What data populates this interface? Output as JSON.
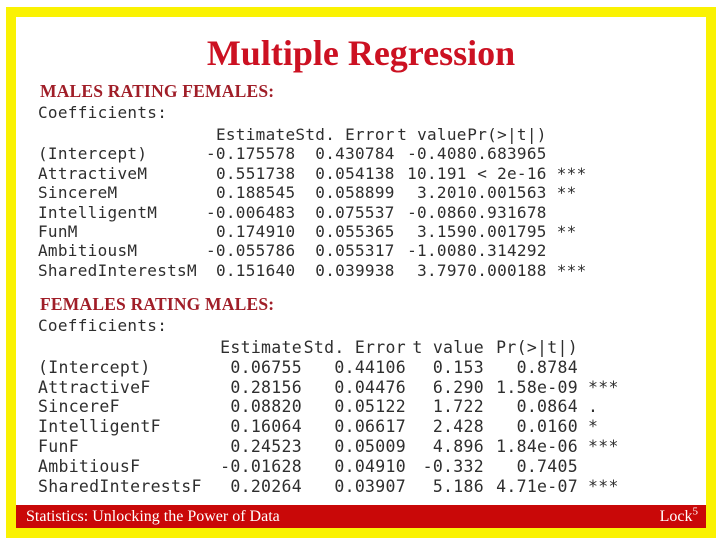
{
  "slide": {
    "title": "Multiple Regression"
  },
  "colors": {
    "title_red": "#cc1122",
    "heading_red": "#a01e28",
    "footer_red": "#c90808",
    "border_yellow": "#faf202",
    "footer_text": "#ffffff",
    "body_text": "#2e2e2e"
  },
  "sections": [
    {
      "heading": "MALES RATING FEMALES:",
      "coefficients_label": "Coefficients:",
      "columns": [
        "Estimate",
        "Std. Error",
        "t value",
        "Pr(>|t|)"
      ],
      "rows": [
        {
          "label": "(Intercept)",
          "estimate": "-0.175578",
          "std_error": "0.430784",
          "t_value": "-0.408",
          "p_value": "0.683965",
          "sig": ""
        },
        {
          "label": "AttractiveM",
          "estimate": "0.551738",
          "std_error": "0.054138",
          "t_value": "10.191",
          "p_value": "< 2e-16",
          "sig": "***"
        },
        {
          "label": "SincereM",
          "estimate": "0.188545",
          "std_error": "0.058899",
          "t_value": "3.201",
          "p_value": "0.001563",
          "sig": "**"
        },
        {
          "label": "IntelligentM",
          "estimate": "-0.006483",
          "std_error": "0.075537",
          "t_value": "-0.086",
          "p_value": "0.931678",
          "sig": ""
        },
        {
          "label": "FunM",
          "estimate": "0.174910",
          "std_error": "0.055365",
          "t_value": "3.159",
          "p_value": "0.001795",
          "sig": "**"
        },
        {
          "label": "AmbitiousM",
          "estimate": "-0.055786",
          "std_error": "0.055317",
          "t_value": "-1.008",
          "p_value": "0.314292",
          "sig": ""
        },
        {
          "label": "SharedInterestsM",
          "estimate": "0.151640",
          "std_error": "0.039938",
          "t_value": "3.797",
          "p_value": "0.000188",
          "sig": "***"
        }
      ]
    },
    {
      "heading": "FEMALES RATING MALES:",
      "coefficients_label": "Coefficients:",
      "columns": [
        "Estimate",
        "Std. Error",
        "t value",
        "Pr(>|t|)"
      ],
      "rows": [
        {
          "label": "(Intercept)",
          "estimate": "0.06755",
          "std_error": "0.44106",
          "t_value": "0.153",
          "p_value": "0.8784",
          "sig": ""
        },
        {
          "label": "AttractiveF",
          "estimate": "0.28156",
          "std_error": "0.04476",
          "t_value": "6.290",
          "p_value": "1.58e-09",
          "sig": "***"
        },
        {
          "label": "SincereF",
          "estimate": "0.08820",
          "std_error": "0.05122",
          "t_value": "1.722",
          "p_value": "0.0864",
          "sig": "."
        },
        {
          "label": "IntelligentF",
          "estimate": "0.16064",
          "std_error": "0.06617",
          "t_value": "2.428",
          "p_value": "0.0160",
          "sig": "*"
        },
        {
          "label": "FunF",
          "estimate": "0.24523",
          "std_error": "0.05009",
          "t_value": "4.896",
          "p_value": "1.84e-06",
          "sig": "***"
        },
        {
          "label": "AmbitiousF",
          "estimate": "-0.01628",
          "std_error": "0.04910",
          "t_value": "-0.332",
          "p_value": "0.7405",
          "sig": ""
        },
        {
          "label": "SharedInterestsF",
          "estimate": "0.20264",
          "std_error": "0.03907",
          "t_value": "5.186",
          "p_value": "4.71e-07",
          "sig": "***"
        }
      ]
    }
  ],
  "footer": {
    "left_text": "Statistics: Unlocking the Power of Data",
    "right_text": "Lock",
    "right_sup": "5"
  }
}
